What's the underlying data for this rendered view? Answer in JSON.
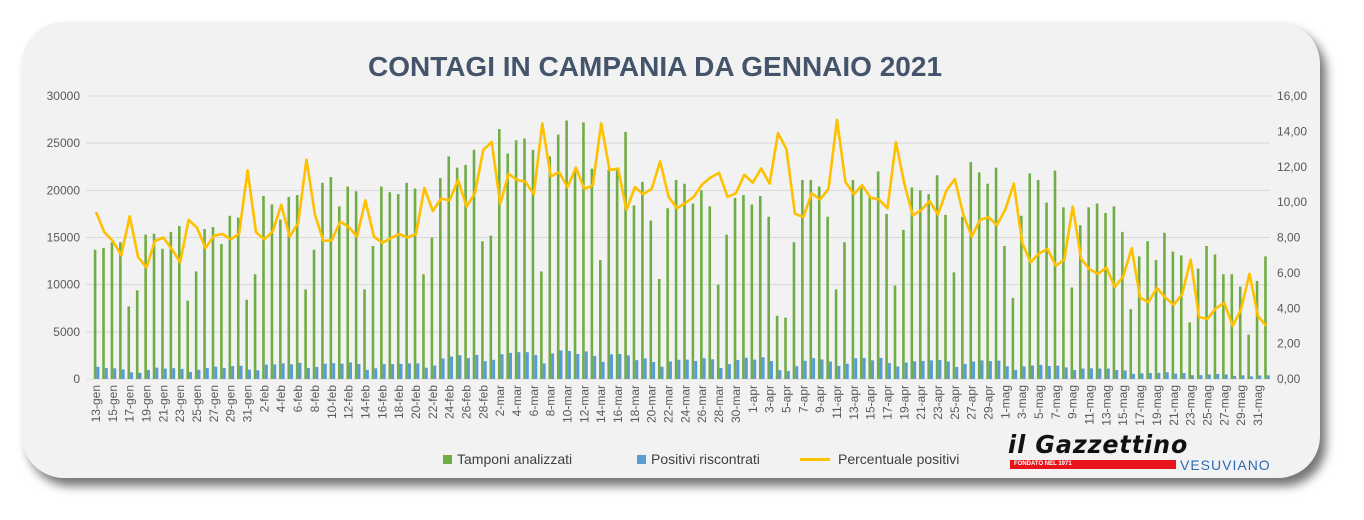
{
  "chart_data": {
    "type": "bar",
    "title": "CONTAGI IN CAMPANIA DA GENNAIO 2021",
    "left_axis": {
      "range": [
        0,
        30000
      ],
      "ticks": [
        "0",
        "5000",
        "10000",
        "15000",
        "20000",
        "25000",
        "30000"
      ]
    },
    "right_axis": {
      "range": [
        0,
        16
      ],
      "ticks": [
        "0,00",
        "2,00",
        "4,00",
        "6,00",
        "8,00",
        "10,00",
        "12,00",
        "14,00",
        "16,00"
      ]
    },
    "grid": true,
    "legend_position": "bottom",
    "categories": [
      "13-gen",
      "14-gen",
      "15-gen",
      "16-gen",
      "17-gen",
      "18-gen",
      "19-gen",
      "20-gen",
      "21-gen",
      "22-gen",
      "23-gen",
      "24-gen",
      "25-gen",
      "26-gen",
      "27-gen",
      "28-gen",
      "29-gen",
      "30-gen",
      "31-gen",
      "1-feb",
      "2-feb",
      "3-feb",
      "4-feb",
      "5-feb",
      "6-feb",
      "7-feb",
      "8-feb",
      "9-feb",
      "10-feb",
      "11-feb",
      "12-feb",
      "13-feb",
      "14-feb",
      "15-feb",
      "16-feb",
      "17-feb",
      "18-feb",
      "19-feb",
      "20-feb",
      "21-feb",
      "22-feb",
      "23-feb",
      "24-feb",
      "25-feb",
      "26-feb",
      "27-feb",
      "28-feb",
      "1-mar",
      "2-mar",
      "3-mar",
      "4-mar",
      "5-mar",
      "6-mar",
      "7-mar",
      "8-mar",
      "9-mar",
      "10-mar",
      "11-mar",
      "12-mar",
      "13-mar",
      "14-mar",
      "15-mar",
      "16-mar",
      "17-mar",
      "18-mar",
      "19-mar",
      "20-mar",
      "21-mar",
      "22-mar",
      "23-mar",
      "24-mar",
      "25-mar",
      "26-mar",
      "27-mar",
      "28-mar",
      "29-mar",
      "30-mar",
      "31-mar",
      "1-apr",
      "2-apr",
      "3-apr",
      "4-apr",
      "5-apr",
      "6-apr",
      "7-apr",
      "8-apr",
      "9-apr",
      "10-apr",
      "11-apr",
      "12-apr",
      "13-apr",
      "14-apr",
      "15-apr",
      "16-apr",
      "17-apr",
      "18-apr",
      "19-apr",
      "20-apr",
      "21-apr",
      "22-apr",
      "23-apr",
      "24-apr",
      "25-apr",
      "26-apr",
      "27-apr",
      "28-apr",
      "29-apr",
      "30-apr",
      "1-mag",
      "2-mag",
      "3-mag",
      "4-mag",
      "5-mag",
      "6-mag",
      "7-mag",
      "8-mag",
      "9-mag",
      "10-mag",
      "11-mag",
      "12-mag",
      "13-mag",
      "14-mag",
      "15-mag",
      "16-mag",
      "17-mag",
      "18-mag",
      "19-mag",
      "20-mag",
      "21-mag",
      "22-mag",
      "23-mag",
      "24-mag",
      "25-mag",
      "26-mag",
      "27-mag",
      "28-mag",
      "29-mag",
      "30-mag",
      "31-mag",
      "1-giu"
    ],
    "series": [
      {
        "name": "Tamponi analizzati",
        "type": "bar",
        "axis": "left",
        "color": "#70AD47",
        "values": [
          13700,
          13900,
          14500,
          14500,
          7700,
          9400,
          15300,
          15400,
          13800,
          15600,
          16200,
          8300,
          11400,
          15900,
          16100,
          14300,
          17300,
          17100,
          8400,
          11100,
          19400,
          18500,
          16900,
          19300,
          19500,
          9500,
          13700,
          20800,
          21400,
          18300,
          20400,
          19900,
          9500,
          14100,
          20400,
          19800,
          19600,
          20800,
          20200,
          11100,
          15000,
          21300,
          23600,
          22400,
          22700,
          24300,
          14600,
          15200,
          26500,
          23900,
          25300,
          25500,
          24300,
          11400,
          23600,
          25900,
          27400,
          22200,
          27200,
          22300,
          12600,
          22200,
          22300,
          26200,
          18400,
          20900,
          16800,
          10600,
          18100,
          21100,
          20700,
          18600,
          20000,
          18300,
          10000,
          15300,
          19200,
          19500,
          18500,
          19400,
          17200,
          6700,
          6500,
          14500,
          21100,
          21100,
          20400,
          17200,
          9500,
          14500,
          21100,
          20300,
          19300,
          22000,
          17500,
          9900,
          15800,
          20300,
          20000,
          19600,
          21600,
          17400,
          11300,
          17200,
          23000,
          21900,
          20700,
          22400,
          14100,
          8600,
          17300,
          21800,
          21100,
          18700,
          22100,
          18200,
          9700,
          16300,
          18200,
          18600,
          17600,
          18300,
          15600,
          7400,
          13000,
          14600,
          12600,
          15500,
          13500,
          13100,
          6000,
          11700,
          14100,
          13200,
          11100,
          11100,
          9800,
          4700,
          10400,
          13000
        ]
      },
      {
        "name": "Positivi riscontrati",
        "type": "bar",
        "axis": "left",
        "color": "#5B9BD5",
        "values": [
          1293,
          1154,
          1131,
          1015,
          708,
          649,
          964,
          1201,
          1104,
          1147,
          1069,
          747,
          975,
          1177,
          1304,
          1173,
          1367,
          1402,
          991,
          921,
          1533,
          1545,
          1665,
          1554,
          1716,
          1178,
          1274,
          1622,
          1680,
          1629,
          1754,
          1602,
          960,
          1135,
          1571,
          1574,
          1607,
          1664,
          1656,
          1199,
          1425,
          2173,
          2384,
          2520,
          2213,
          2552,
          1891,
          2037,
          2624,
          2772,
          2846,
          2843,
          2539,
          1647,
          2702,
          3030,
          2973,
          2653,
          2924,
          2442,
          1821,
          2620,
          2654,
          2502,
          1996,
          2184,
          1806,
          1304,
          1864,
          2036,
          2060,
          1916,
          2200,
          2086,
          1165,
          1576,
          2016,
          2252,
          2054,
          2309,
          1901,
          931,
          845,
          1356,
          1931,
          2216,
          2071,
          1849,
          1392,
          1617,
          2205,
          2223,
          1978,
          2233,
          1689,
          1327,
          1746,
          1878,
          1910,
          1970,
          2009,
          1853,
          1277,
          1600,
          1852,
          1971,
          1894,
          1949,
          1354,
          950,
          1332,
          1439,
          1498,
          1374,
          1414,
          1229,
          946,
          1108,
          1128,
          1107,
          1109,
          952,
          905,
          548,
          598,
          635,
          649,
          713,
          567,
          629,
          405,
          410,
          479,
          528,
          477,
          333,
          387,
          280,
          369,
          390
        ]
      },
      {
        "name": "Percentuale positivi",
        "type": "line",
        "axis": "right",
        "color": "#FFC000",
        "values": [
          9.44,
          8.3,
          7.8,
          7.0,
          9.2,
          6.9,
          6.3,
          7.8,
          8.0,
          7.35,
          6.6,
          9.0,
          8.55,
          7.4,
          8.1,
          8.2,
          7.9,
          8.2,
          11.8,
          8.3,
          7.9,
          8.35,
          9.85,
          8.05,
          8.8,
          12.4,
          9.3,
          7.8,
          7.85,
          8.9,
          8.6,
          8.05,
          10.1,
          8.05,
          7.7,
          7.95,
          8.2,
          8.0,
          8.2,
          10.8,
          9.5,
          10.2,
          10.1,
          11.25,
          9.75,
          10.5,
          12.95,
          13.4,
          9.9,
          11.6,
          11.25,
          11.15,
          10.45,
          14.45,
          11.45,
          11.7,
          10.85,
          11.95,
          10.75,
          10.95,
          14.45,
          11.8,
          11.9,
          9.55,
          10.85,
          10.45,
          10.75,
          12.3,
          10.3,
          9.65,
          9.95,
          10.3,
          11.0,
          11.4,
          11.65,
          10.3,
          10.5,
          11.55,
          11.1,
          11.9,
          11.05,
          13.9,
          13.0,
          9.35,
          9.15,
          10.5,
          10.15,
          10.75,
          14.65,
          11.15,
          10.45,
          10.95,
          10.25,
          10.15,
          9.65,
          13.4,
          11.05,
          9.25,
          9.55,
          10.05,
          9.3,
          10.65,
          11.3,
          9.3,
          8.05,
          9.0,
          9.15,
          8.7,
          9.6,
          11.05,
          7.7,
          6.6,
          7.1,
          7.35,
          6.4,
          6.75,
          9.75,
          6.8,
          6.2,
          5.95,
          6.3,
          5.2,
          5.8,
          7.4,
          4.6,
          4.35,
          5.15,
          4.6,
          4.2,
          4.8,
          6.75,
          3.5,
          3.4,
          4.0,
          4.3,
          3.0,
          3.95,
          5.95,
          3.55,
          3.0
        ]
      }
    ]
  },
  "logo": {
    "name": "il Gazzettino",
    "subtitle": "VESUVIANO",
    "tagline": "FONDATO NEL 1971"
  }
}
